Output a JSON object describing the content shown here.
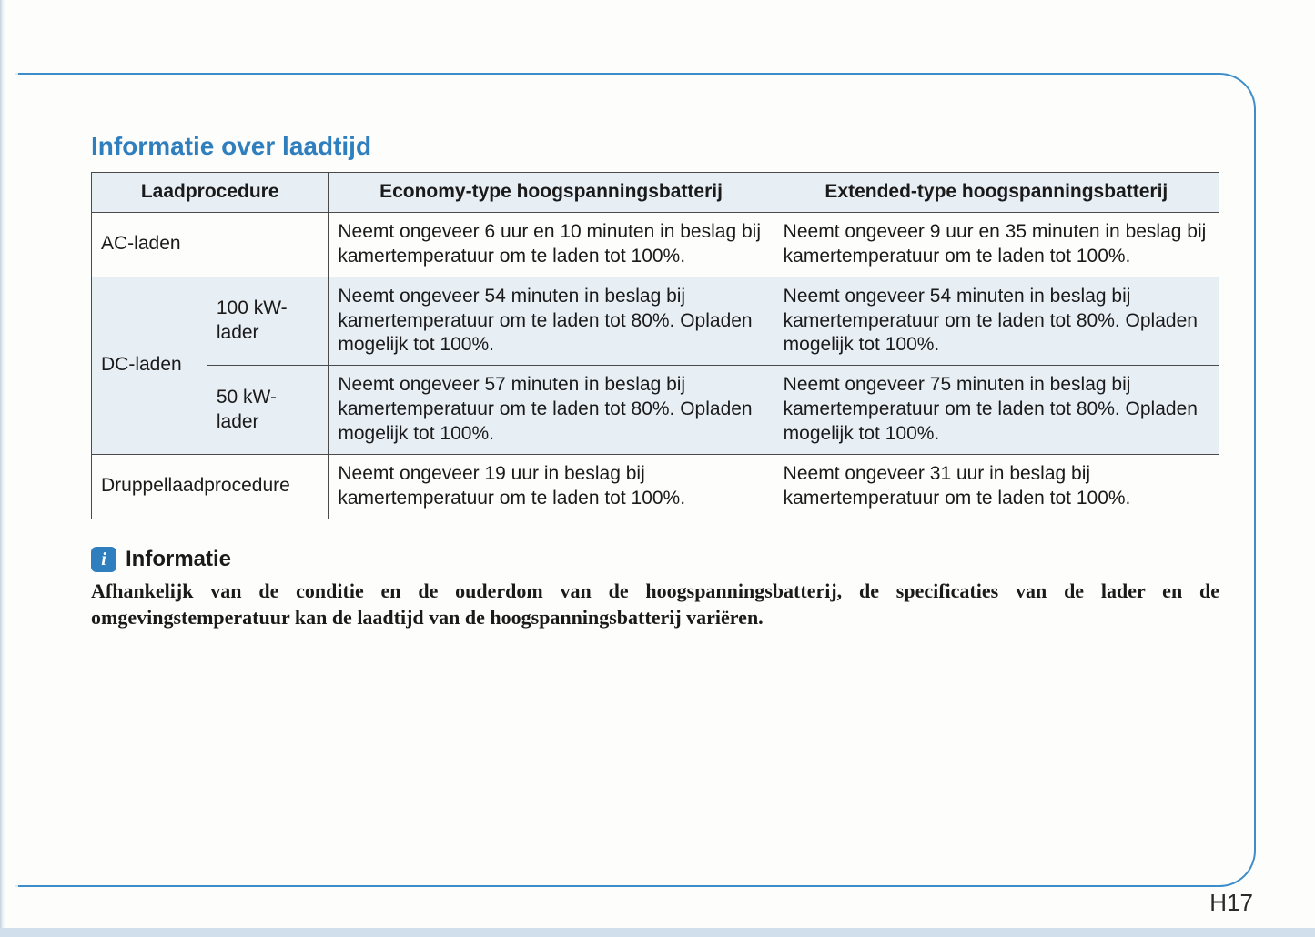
{
  "colors": {
    "page_bg": "#d0dfeb",
    "sheet_bg": "#fdfdfb",
    "accent_blue": "#2f7fbe",
    "panel_border": "#3d8dcb",
    "table_border": "#4a4a4a",
    "table_header_bg": "#e7eef4",
    "text": "#1a1a1a"
  },
  "section_title": "Informatie over laadtijd",
  "table": {
    "headers": {
      "procedure": "Laadprocedure",
      "economy": "Economy-type hoogspanningsbatterij",
      "extended": "Extended-type hoogspanningsbatterij"
    },
    "rows": {
      "ac": {
        "label": "AC-laden",
        "economy": "Neemt ongeveer 6 uur en 10 minuten in beslag bij kamertemperatuur om te laden tot 100%.",
        "extended": "Neemt ongeveer 9 uur en 35 minuten in beslag bij kamertemperatuur om te laden tot 100%."
      },
      "dc": {
        "label": "DC-laden",
        "k100": {
          "label": "100 kW-lader",
          "economy": "Neemt ongeveer 54 minuten in beslag bij kamertemperatuur om te laden tot 80%. Opladen mogelijk tot 100%.",
          "extended": "Neemt ongeveer 54 minuten in beslag bij kamertemperatuur om te laden tot 80%. Opladen mogelijk tot 100%."
        },
        "k50": {
          "label": "50 kW-lader",
          "economy": "Neemt ongeveer 57 minuten in beslag bij kamertemperatuur om te laden tot 80%. Opladen mogelijk tot 100%.",
          "extended": "Neemt ongeveer 75 minuten in beslag bij kamertemperatuur om te laden tot 80%. Opladen mogelijk tot 100%."
        }
      },
      "trickle": {
        "label": "Druppellaadprocedure",
        "economy": "Neemt ongeveer 19 uur in beslag bij kamertemperatuur om te laden tot 100%.",
        "extended": "Neemt ongeveer 31 uur in beslag bij kamertemperatuur om te laden tot 100%."
      }
    }
  },
  "info": {
    "badge_glyph": "i",
    "title": "Informatie",
    "body": "Afhankelijk van de conditie en de ouderdom van de hoogspanningsbatterij, de specificaties van de lader en de omgevingstemperatuur kan de laadtijd van de hoogspanningsbatterij variëren."
  },
  "page_number": "H17"
}
